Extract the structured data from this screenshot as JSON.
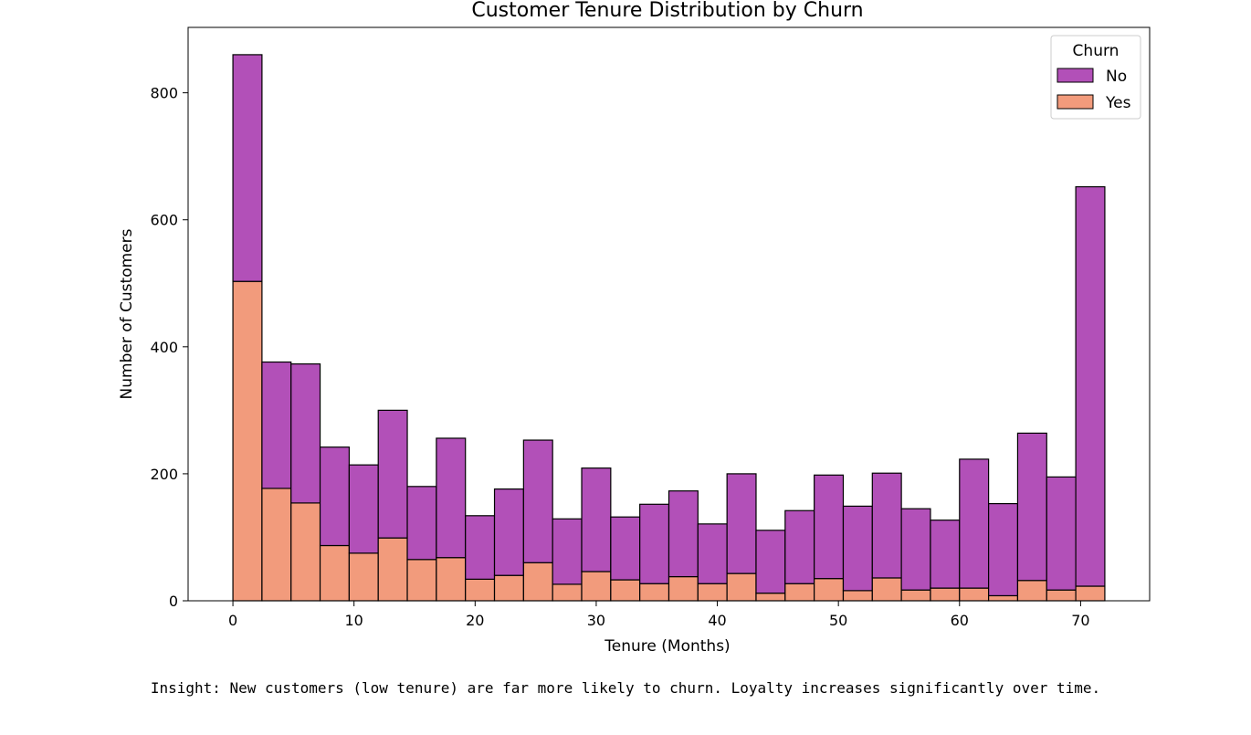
{
  "colors": {
    "no": "#b250b8",
    "yes": "#f29b7c",
    "edge": "#000000"
  },
  "chart_data": {
    "type": "bar",
    "stacked": true,
    "title": "Customer Tenure Distribution by Churn",
    "xlabel": "Tenure (Months)",
    "ylabel": "Number of Customers",
    "xlim": [
      -3.7,
      75.7
    ],
    "ylim": [
      0,
      903
    ],
    "xticks": [
      0,
      10,
      20,
      30,
      40,
      50,
      60,
      70
    ],
    "yticks": [
      0,
      200,
      400,
      600,
      800
    ],
    "bin_edges": [
      0,
      2.4,
      4.8,
      7.2,
      9.6,
      12,
      14.4,
      16.8,
      19.2,
      21.6,
      24,
      26.4,
      28.8,
      31.2,
      33.6,
      36,
      38.4,
      40.8,
      43.2,
      45.6,
      48,
      50.4,
      52.8,
      55.2,
      57.6,
      60,
      62.4,
      64.8,
      67.2,
      69.6,
      72
    ],
    "legend": {
      "title": "Churn",
      "position": "top-right",
      "entries": [
        "No",
        "Yes"
      ]
    },
    "series": [
      {
        "name": "Yes",
        "color": "#f29b7c",
        "values": [
          503,
          177,
          154,
          87,
          75,
          99,
          65,
          68,
          34,
          40,
          60,
          26,
          46,
          33,
          27,
          38,
          27,
          43,
          12,
          27,
          35,
          16,
          36,
          17,
          20,
          20,
          8,
          32,
          17,
          23
        ]
      },
      {
        "name": "No",
        "color": "#b250b8",
        "values": [
          357,
          199,
          219,
          155,
          139,
          201,
          115,
          188,
          100,
          136,
          193,
          103,
          163,
          99,
          125,
          135,
          94,
          157,
          99,
          115,
          163,
          133,
          165,
          128,
          107,
          203,
          145,
          232,
          178,
          629
        ]
      }
    ]
  },
  "insight": "Insight: New customers (low tenure) are far more likely to churn. Loyalty increases significantly over time."
}
